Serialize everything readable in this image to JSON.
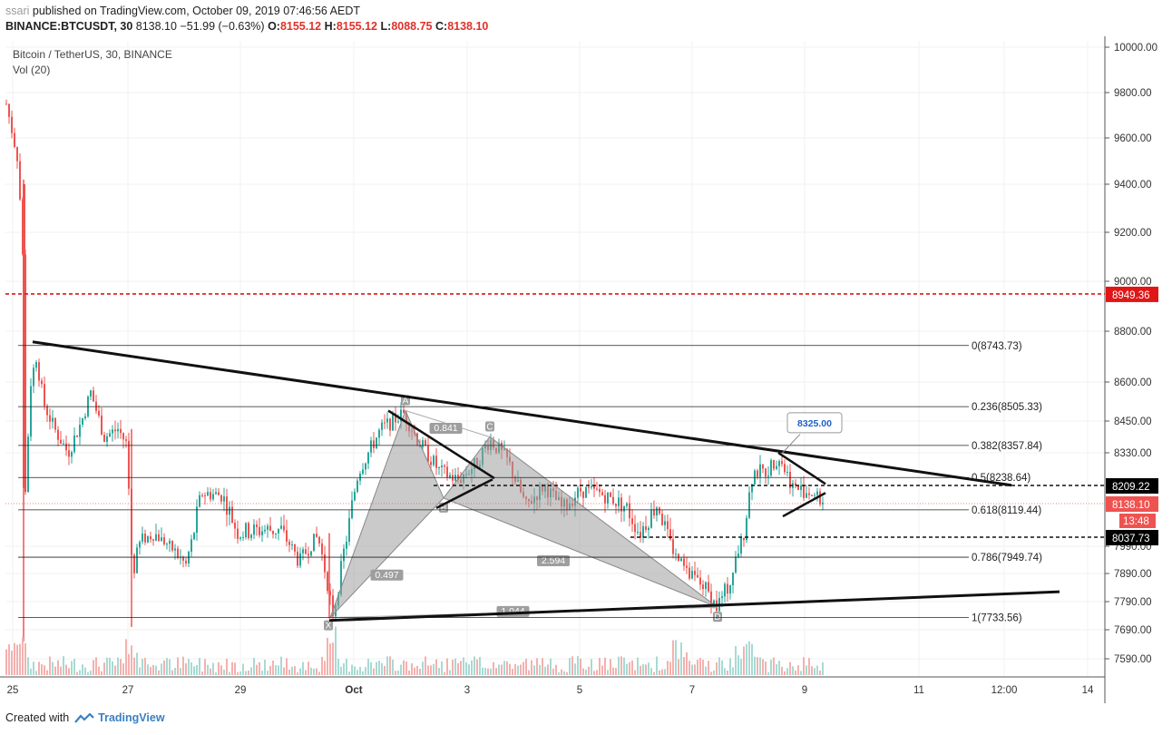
{
  "header": {
    "user": "ssari",
    "published_text": "published on TradingView.com, October 09, 2019 07:46:56 AEDT",
    "symbol_line": "BINANCE:BTCUSDT, 30",
    "last": "8138.10",
    "change": "−51.99 (−0.63%)",
    "o_label": "O:",
    "o_value": "8155.12",
    "h_label": "H:",
    "h_value": "8155.12",
    "l_label": "L:",
    "l_value": "8088.75",
    "c_label": "C:",
    "c_value": "8138.10"
  },
  "legend": {
    "title": "Bitcoin / TetherUS, 30, BINANCE",
    "volume": "Vol (20)"
  },
  "footer": {
    "created_with": "Created with",
    "brand": "TradingView"
  },
  "colors": {
    "up": "#26a69a",
    "down": "#ef5350",
    "red_line": "#e01616",
    "pattern_fill": "#9e9e9e",
    "label_bg": "#000000",
    "badge_blue": "#2060c8"
  },
  "chart_data": {
    "type": "candlestick",
    "price_axis_ticks": [
      "10000.00",
      "9800.00",
      "9600.00",
      "9400.00",
      "9200.00",
      "9000.00",
      "8800.00",
      "8600.00",
      "8450.00",
      "8330.00",
      "7990.00",
      "7890.00",
      "7790.00",
      "7690.00",
      "7590.00"
    ],
    "time_axis_ticks": [
      "25",
      "27",
      "29",
      "Oct",
      "3",
      "5",
      "7",
      "9",
      "11",
      "12:00",
      "14"
    ],
    "price_range": [
      7550,
      10050
    ],
    "fib_levels": [
      {
        "ratio": "0",
        "label": "0(8743.73)",
        "price": 8743.73
      },
      {
        "ratio": "0.236",
        "label": "0.236(8505.33)",
        "price": 8505.33
      },
      {
        "ratio": "0.382",
        "label": "0.382(8357.84)",
        "price": 8357.84
      },
      {
        "ratio": "0.5",
        "label": "0.5(8238.64)",
        "price": 8238.64
      },
      {
        "ratio": "0.618",
        "label": "0.618(8119.44)",
        "price": 8119.44
      },
      {
        "ratio": "0.786",
        "label": "0.786(7949.74)",
        "price": 7949.74
      },
      {
        "ratio": "1",
        "label": "1(7733.56)",
        "price": 7733.56
      }
    ],
    "horizontal_labels": [
      {
        "value": "8949.36",
        "price": 8949.36,
        "style": "red-dashed"
      },
      {
        "value": "8209.22",
        "price": 8209.22,
        "style": "black-dashed"
      },
      {
        "value": "8138.10",
        "price": 8138.1,
        "style": "last-price"
      },
      {
        "value": "8037.73",
        "price": 8037.73,
        "style": "black-dashed"
      }
    ],
    "countdown": "13:48",
    "price_badge": "8325.00",
    "harmonic_points": [
      "X",
      "A",
      "B",
      "C",
      "D"
    ],
    "harmonic_ratios": [
      "0.841",
      "0.497",
      "2.594",
      "1.044"
    ]
  }
}
